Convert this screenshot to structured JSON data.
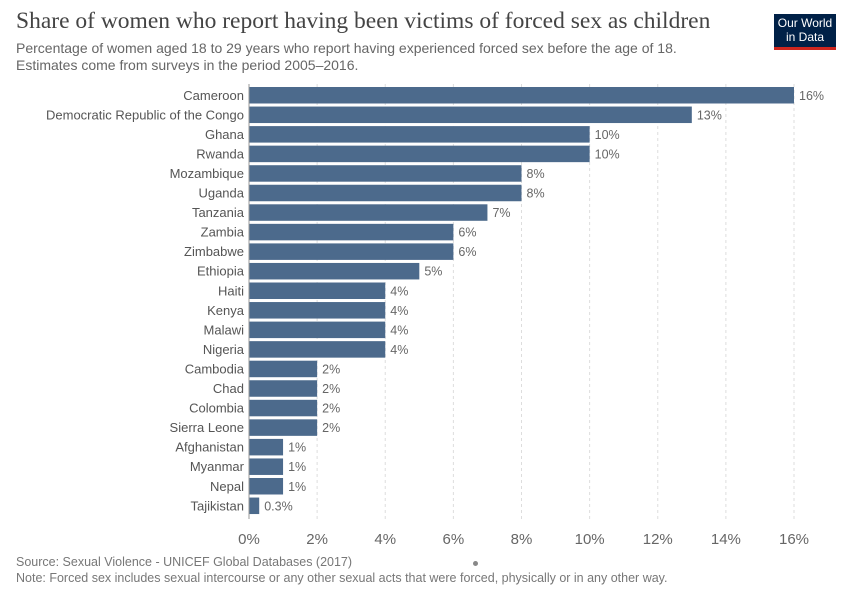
{
  "header": {
    "title": "Share of women who report having been victims of forced sex as children",
    "subtitle_line1": "Percentage of women aged 18 to 29 years who report having experienced forced sex before the age of 18.",
    "subtitle_line2": "Estimates come from surveys in the period 2005–2016."
  },
  "logo": {
    "line1": "Our World",
    "line2": "in Data"
  },
  "footer": {
    "source": "Source: Sexual Violence - UNICEF Global Databases (2017)",
    "note": "Note: Forced sex includes sexual intercourse or any other sexual acts that were forced, physically or in any other way."
  },
  "colors": {
    "bar": "#4c6a8c",
    "grid": "#dddddd",
    "logo_bg": "#002147",
    "logo_accent": "#ce261e"
  },
  "chart_data": {
    "type": "bar",
    "orientation": "horizontal",
    "categories": [
      "Cameroon",
      "Democratic Republic of the Congo",
      "Ghana",
      "Rwanda",
      "Mozambique",
      "Uganda",
      "Tanzania",
      "Zambia",
      "Zimbabwe",
      "Ethiopia",
      "Haiti",
      "Kenya",
      "Malawi",
      "Nigeria",
      "Cambodia",
      "Chad",
      "Colombia",
      "Sierra Leone",
      "Afghanistan",
      "Myanmar",
      "Nepal",
      "Tajikistan"
    ],
    "values": [
      16,
      13,
      10,
      10,
      8,
      8,
      7,
      6,
      6,
      5,
      4,
      4,
      4,
      4,
      2,
      2,
      2,
      2,
      1,
      1,
      1,
      0.3
    ],
    "value_labels": [
      "16%",
      "13%",
      "10%",
      "10%",
      "8%",
      "8%",
      "7%",
      "6%",
      "6%",
      "5%",
      "4%",
      "4%",
      "4%",
      "4%",
      "2%",
      "2%",
      "2%",
      "2%",
      "1%",
      "1%",
      "1%",
      "0.3%"
    ],
    "xlim": [
      0,
      16
    ],
    "xticks": [
      0,
      2,
      4,
      6,
      8,
      10,
      12,
      14,
      16
    ],
    "xtick_labels": [
      "0%",
      "2%",
      "4%",
      "6%",
      "8%",
      "10%",
      "12%",
      "14%",
      "16%"
    ],
    "grid": true
  }
}
